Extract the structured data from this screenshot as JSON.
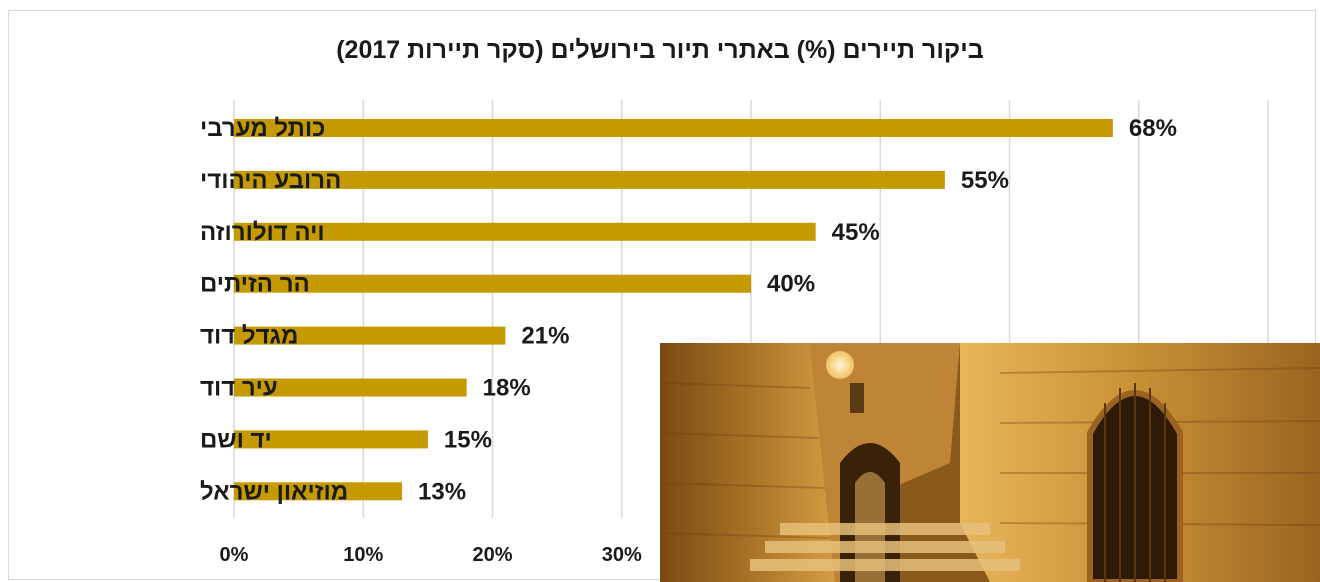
{
  "chart_data": {
    "type": "bar",
    "orientation": "horizontal",
    "title": "ביקור תיירים (%) באתרי תיור בירושלים (סקר תיירות 2017)",
    "categories": [
      "כותל מערבי",
      "הרובע היהודי",
      "ויה דולורוזה",
      "הר הזיתים",
      "מגדל דוד",
      "עיר דוד",
      "יד ושם",
      "מוזיאון ישראל"
    ],
    "values": [
      68,
      55,
      45,
      40,
      21,
      18,
      15,
      13
    ],
    "value_labels": [
      "68%",
      "55%",
      "45%",
      "40%",
      "21%",
      "18%",
      "15%",
      "13%"
    ],
    "xlim": [
      0,
      80
    ],
    "x_ticks": [
      "0%",
      "10%",
      "20%",
      "30%"
    ],
    "bar_color": "#c49a00",
    "grid": true,
    "legend": false
  },
  "photo": {
    "icon": "jerusalem-old-city-alley-photo"
  }
}
